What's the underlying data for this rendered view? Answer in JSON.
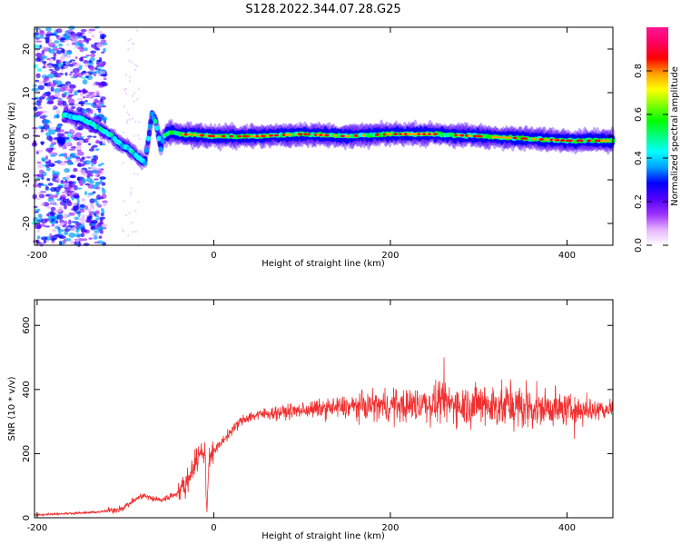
{
  "title": "S128.2022.344.07.28.G25",
  "chart_data": [
    {
      "type": "heatmap",
      "xlabel": "Height of straight line (km)",
      "ylabel": "Frequency (Hz)",
      "xlim": [
        -203,
        452
      ],
      "ylim": [
        -25,
        25
      ],
      "xticks": [
        -200,
        0,
        200,
        400
      ],
      "yticks": [
        -20,
        -10,
        0,
        10,
        20
      ],
      "colorbar": {
        "label": "Normalized spectral amplitude",
        "range": [
          0,
          1
        ],
        "ticks": [
          0.0,
          0.2,
          0.4,
          0.6,
          0.8
        ],
        "colors": [
          "#ffffff",
          "#e6b3ff",
          "#9b30ff",
          "#5000ff",
          "#0000ff",
          "#00a0ff",
          "#00ffff",
          "#00ff80",
          "#00ff00",
          "#80ff00",
          "#ffff00",
          "#ffa000",
          "#ff0000",
          "#ff0060",
          "#ff1493"
        ]
      },
      "ridge": {
        "x": [
          -170,
          -150,
          -130,
          -115,
          -105,
          -95,
          -85,
          -78,
          -70,
          -65,
          -60,
          -57,
          -50,
          -40,
          -20,
          0,
          50,
          100,
          150,
          200,
          250,
          300,
          350,
          400,
          450
        ],
        "y": [
          5,
          4,
          2,
          0,
          -2,
          -3,
          -5,
          -6,
          5,
          3,
          -3,
          0,
          1,
          0.5,
          0.3,
          0,
          0,
          0.5,
          0,
          0.5,
          0.5,
          0,
          -0.5,
          -1,
          -1
        ]
      }
    },
    {
      "type": "line",
      "xlabel": "Height of straight line (km)",
      "ylabel": "SNR (10 * v/v)",
      "xlim": [
        -203,
        452
      ],
      "ylim": [
        0,
        680
      ],
      "xticks": [
        -200,
        0,
        200,
        400
      ],
      "yticks": [
        0,
        200,
        400,
        600
      ],
      "color": "#f03030",
      "series": [
        {
          "x": [
            -203,
            -180,
            -150,
            -130,
            -110,
            -100,
            -90,
            -80,
            -70,
            -60,
            -50,
            -40,
            -30,
            -25,
            -20,
            -15,
            -10,
            -8,
            -5,
            0,
            10,
            20,
            30,
            40,
            60,
            80,
            100,
            120,
            150,
            180,
            200,
            220,
            250,
            280,
            300,
            320,
            350,
            380,
            400,
            420,
            452
          ],
          "y": [
            8,
            12,
            15,
            18,
            25,
            35,
            55,
            70,
            60,
            55,
            65,
            80,
            110,
            150,
            180,
            200,
            210,
            20,
            200,
            205,
            240,
            270,
            300,
            315,
            325,
            330,
            335,
            340,
            345,
            350,
            350,
            352,
            355,
            355,
            352,
            350,
            345,
            340,
            338,
            338,
            340
          ]
        }
      ]
    }
  ]
}
